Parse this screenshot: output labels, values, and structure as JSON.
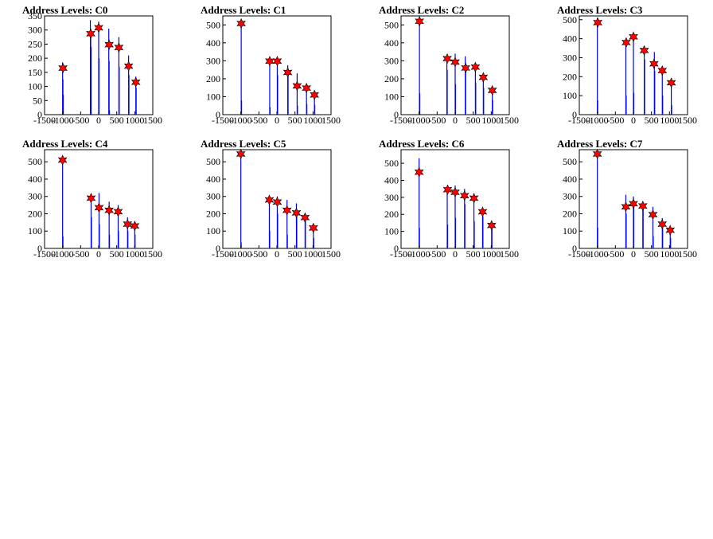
{
  "page": {
    "background": "#ffffff"
  },
  "style": {
    "bar_color": "#0000ff",
    "marker_color": "#ff0000",
    "axis_color": "#000000"
  },
  "chart_data": [
    {
      "type": "bar",
      "title": "Address Levels: C0",
      "xlim": [
        -1500,
        1500
      ],
      "ylim": [
        0,
        350
      ],
      "xticks": [
        -1500,
        -1000,
        -500,
        0,
        500,
        1000,
        1500
      ],
      "xtick_labels": [
        "-1500",
        "-1000",
        "-500",
        "0",
        "500",
        "1000",
        "1500"
      ],
      "yticks": [
        0,
        50,
        100,
        150,
        200,
        250,
        300,
        350
      ],
      "ytick_labels": [
        "0",
        "50",
        "100",
        "150",
        "200",
        "250",
        "300",
        "350"
      ],
      "bars": [
        {
          "x": -1000,
          "y": 185
        },
        {
          "x": -990,
          "y": 125
        },
        {
          "x": -980,
          "y": 70
        },
        {
          "x": -230,
          "y": 335
        },
        {
          "x": -220,
          "y": 300
        },
        {
          "x": -210,
          "y": 240
        },
        {
          "x": 0,
          "y": 330
        },
        {
          "x": 10,
          "y": 200
        },
        {
          "x": 280,
          "y": 305
        },
        {
          "x": 290,
          "y": 190
        },
        {
          "x": 300,
          "y": 15
        },
        {
          "x": 560,
          "y": 275
        },
        {
          "x": 570,
          "y": 170
        },
        {
          "x": 830,
          "y": 210
        },
        {
          "x": 840,
          "y": 140
        },
        {
          "x": 1030,
          "y": 135
        },
        {
          "x": 1040,
          "y": 95
        }
      ],
      "markers": [
        {
          "x": -990,
          "y": 165
        },
        {
          "x": -220,
          "y": 287
        },
        {
          "x": 0,
          "y": 308
        },
        {
          "x": 290,
          "y": 248
        },
        {
          "x": 560,
          "y": 238
        },
        {
          "x": 830,
          "y": 172
        },
        {
          "x": 1030,
          "y": 115
        }
      ]
    },
    {
      "type": "bar",
      "title": "Address Levels: C1",
      "xlim": [
        -1500,
        1500
      ],
      "ylim": [
        0,
        550
      ],
      "xticks": [
        -1500,
        -1000,
        -500,
        0,
        500,
        1000,
        1500
      ],
      "xtick_labels": [
        "-1500",
        "-1000",
        "-500",
        "0",
        "500",
        "1000",
        "1500"
      ],
      "yticks": [
        0,
        100,
        200,
        300,
        400,
        500
      ],
      "ytick_labels": [
        "0",
        "100",
        "200",
        "300",
        "400",
        "500"
      ],
      "bars": [
        {
          "x": -990,
          "y": 515
        },
        {
          "x": -980,
          "y": 80
        },
        {
          "x": -200,
          "y": 290
        },
        {
          "x": -190,
          "y": 40
        },
        {
          "x": 10,
          "y": 310
        },
        {
          "x": 20,
          "y": 220
        },
        {
          "x": 300,
          "y": 275
        },
        {
          "x": 310,
          "y": 240
        },
        {
          "x": 560,
          "y": 230
        },
        {
          "x": 570,
          "y": 50
        },
        {
          "x": 820,
          "y": 150
        },
        {
          "x": 830,
          "y": 60
        },
        {
          "x": 1040,
          "y": 115
        },
        {
          "x": 1050,
          "y": 55
        }
      ],
      "markers": [
        {
          "x": -990,
          "y": 508
        },
        {
          "x": -200,
          "y": 298
        },
        {
          "x": 10,
          "y": 298
        },
        {
          "x": 300,
          "y": 235
        },
        {
          "x": 560,
          "y": 160
        },
        {
          "x": 820,
          "y": 148
        },
        {
          "x": 1040,
          "y": 110
        }
      ]
    },
    {
      "type": "bar",
      "title": "Address Levels: C2",
      "xlim": [
        -1500,
        1500
      ],
      "ylim": [
        0,
        550
      ],
      "xticks": [
        -1500,
        -1000,
        -500,
        0,
        500,
        1000,
        1500
      ],
      "xtick_labels": [
        "-1500",
        "-1000",
        "-500",
        "0",
        "500",
        "1000",
        "1500"
      ],
      "yticks": [
        0,
        100,
        200,
        300,
        400,
        500
      ],
      "ytick_labels": [
        "0",
        "100",
        "200",
        "300",
        "400",
        "500"
      ],
      "bars": [
        {
          "x": -990,
          "y": 540
        },
        {
          "x": -980,
          "y": 120
        },
        {
          "x": -230,
          "y": 330
        },
        {
          "x": -220,
          "y": 250
        },
        {
          "x": 0,
          "y": 340
        },
        {
          "x": 10,
          "y": 170
        },
        {
          "x": 280,
          "y": 325
        },
        {
          "x": 290,
          "y": 260
        },
        {
          "x": 560,
          "y": 275
        },
        {
          "x": 570,
          "y": 180
        },
        {
          "x": 780,
          "y": 215
        },
        {
          "x": 790,
          "y": 150
        },
        {
          "x": 1030,
          "y": 150
        },
        {
          "x": 1040,
          "y": 80
        }
      ],
      "markers": [
        {
          "x": -990,
          "y": 520
        },
        {
          "x": -220,
          "y": 312
        },
        {
          "x": 0,
          "y": 293
        },
        {
          "x": 290,
          "y": 260
        },
        {
          "x": 560,
          "y": 265
        },
        {
          "x": 780,
          "y": 208
        },
        {
          "x": 1030,
          "y": 135
        }
      ]
    },
    {
      "type": "bar",
      "title": "Address Levels: C3",
      "xlim": [
        -1500,
        1500
      ],
      "ylim": [
        0,
        520
      ],
      "xticks": [
        -1500,
        -1000,
        -500,
        0,
        500,
        1000,
        1500
      ],
      "xtick_labels": [
        "-1500",
        "-1000",
        "-500",
        "0",
        "500",
        "1000",
        "1500"
      ],
      "yticks": [
        0,
        100,
        200,
        300,
        400,
        500
      ],
      "ytick_labels": [
        "0",
        "100",
        "200",
        "300",
        "400",
        "500"
      ],
      "bars": [
        {
          "x": -1000,
          "y": 510
        },
        {
          "x": -990,
          "y": 75
        },
        {
          "x": -210,
          "y": 390
        },
        {
          "x": -200,
          "y": 100
        },
        {
          "x": 0,
          "y": 400
        },
        {
          "x": 10,
          "y": 115
        },
        {
          "x": 300,
          "y": 350
        },
        {
          "x": 310,
          "y": 290
        },
        {
          "x": 580,
          "y": 330
        },
        {
          "x": 590,
          "y": 230
        },
        {
          "x": 800,
          "y": 245
        },
        {
          "x": 810,
          "y": 100
        },
        {
          "x": 1050,
          "y": 180
        },
        {
          "x": 1060,
          "y": 50
        }
      ],
      "markers": [
        {
          "x": -990,
          "y": 485
        },
        {
          "x": -200,
          "y": 380
        },
        {
          "x": 0,
          "y": 410
        },
        {
          "x": 300,
          "y": 338
        },
        {
          "x": 570,
          "y": 268
        },
        {
          "x": 800,
          "y": 232
        },
        {
          "x": 1050,
          "y": 168
        }
      ]
    },
    {
      "type": "bar",
      "title": "Address Levels: C4",
      "xlim": [
        -1500,
        1500
      ],
      "ylim": [
        0,
        570
      ],
      "xticks": [
        -1500,
        -1000,
        -500,
        0,
        500,
        1000,
        1500
      ],
      "xtick_labels": [
        "-1500",
        "-1000",
        "-500",
        "0",
        "500",
        "1000",
        "1500"
      ],
      "yticks": [
        0,
        100,
        200,
        300,
        400,
        500
      ],
      "ytick_labels": [
        "0",
        "100",
        "200",
        "300",
        "400",
        "500"
      ],
      "bars": [
        {
          "x": -1000,
          "y": 530
        },
        {
          "x": -990,
          "y": 70
        },
        {
          "x": -210,
          "y": 300
        },
        {
          "x": -200,
          "y": 180
        },
        {
          "x": 10,
          "y": 320
        },
        {
          "x": 20,
          "y": 140
        },
        {
          "x": 290,
          "y": 270
        },
        {
          "x": 300,
          "y": 80
        },
        {
          "x": 540,
          "y": 250
        },
        {
          "x": 550,
          "y": 100
        },
        {
          "x": 800,
          "y": 180
        },
        {
          "x": 810,
          "y": 100
        },
        {
          "x": 1000,
          "y": 140
        },
        {
          "x": 1010,
          "y": 80
        }
      ],
      "markers": [
        {
          "x": -1000,
          "y": 510
        },
        {
          "x": -210,
          "y": 290
        },
        {
          "x": 10,
          "y": 235
        },
        {
          "x": 290,
          "y": 220
        },
        {
          "x": 540,
          "y": 212
        },
        {
          "x": 800,
          "y": 140
        },
        {
          "x": 1000,
          "y": 130
        }
      ]
    },
    {
      "type": "bar",
      "title": "Address Levels: C5",
      "xlim": [
        -1500,
        1500
      ],
      "ylim": [
        0,
        570
      ],
      "xticks": [
        -1500,
        -1000,
        -500,
        0,
        500,
        1000,
        1500
      ],
      "xtick_labels": [
        "-1500",
        "-1000",
        "-500",
        "0",
        "500",
        "1000",
        "1500"
      ],
      "yticks": [
        0,
        100,
        200,
        300,
        400,
        500
      ],
      "ytick_labels": [
        "0",
        "100",
        "200",
        "300",
        "400",
        "500"
      ],
      "bars": [
        {
          "x": -1000,
          "y": 560
        },
        {
          "x": -990,
          "y": 35
        },
        {
          "x": -210,
          "y": 300
        },
        {
          "x": -200,
          "y": 100
        },
        {
          "x": 10,
          "y": 300
        },
        {
          "x": 20,
          "y": 200
        },
        {
          "x": 280,
          "y": 280
        },
        {
          "x": 290,
          "y": 80
        },
        {
          "x": 540,
          "y": 260
        },
        {
          "x": 550,
          "y": 220
        },
        {
          "x": 780,
          "y": 190
        },
        {
          "x": 790,
          "y": 160
        },
        {
          "x": 1010,
          "y": 130
        },
        {
          "x": 1020,
          "y": 60
        }
      ],
      "markers": [
        {
          "x": -1000,
          "y": 545
        },
        {
          "x": -210,
          "y": 280
        },
        {
          "x": 10,
          "y": 268
        },
        {
          "x": 280,
          "y": 220
        },
        {
          "x": 540,
          "y": 205
        },
        {
          "x": 780,
          "y": 178
        },
        {
          "x": 1010,
          "y": 118
        }
      ]
    },
    {
      "type": "bar",
      "title": "Address Levels: C6",
      "xlim": [
        -1500,
        1500
      ],
      "ylim": [
        0,
        580
      ],
      "xticks": [
        -1500,
        -1000,
        -500,
        0,
        500,
        1000,
        1500
      ],
      "xtick_labels": [
        "-1500",
        "-1000",
        "-500",
        "0",
        "500",
        "1000",
        "1500"
      ],
      "yticks": [
        0,
        100,
        200,
        300,
        400,
        500
      ],
      "ytick_labels": [
        "0",
        "100",
        "200",
        "300",
        "400",
        "500"
      ],
      "bars": [
        {
          "x": -1000,
          "y": 530
        },
        {
          "x": -990,
          "y": 120
        },
        {
          "x": -220,
          "y": 360
        },
        {
          "x": -210,
          "y": 140
        },
        {
          "x": 0,
          "y": 370
        },
        {
          "x": 10,
          "y": 180
        },
        {
          "x": 260,
          "y": 350
        },
        {
          "x": 270,
          "y": 260
        },
        {
          "x": 520,
          "y": 300
        },
        {
          "x": 530,
          "y": 160
        },
        {
          "x": 760,
          "y": 225
        },
        {
          "x": 770,
          "y": 190
        },
        {
          "x": 1010,
          "y": 160
        },
        {
          "x": 1020,
          "y": 140
        }
      ],
      "markers": [
        {
          "x": -1000,
          "y": 448
        },
        {
          "x": -210,
          "y": 345
        },
        {
          "x": 0,
          "y": 330
        },
        {
          "x": 260,
          "y": 310
        },
        {
          "x": 520,
          "y": 295
        },
        {
          "x": 760,
          "y": 215
        },
        {
          "x": 1010,
          "y": 135
        }
      ]
    },
    {
      "type": "bar",
      "title": "Address Levels: C7",
      "xlim": [
        -1500,
        1500
      ],
      "ylim": [
        0,
        570
      ],
      "xticks": [
        -1500,
        -1000,
        -500,
        0,
        500,
        1000,
        1500
      ],
      "xtick_labels": [
        "-1500",
        "-1000",
        "-500",
        "0",
        "500",
        "1000",
        "1500"
      ],
      "yticks": [
        0,
        100,
        200,
        300,
        400,
        500
      ],
      "ytick_labels": [
        "0",
        "100",
        "200",
        "300",
        "400",
        "500"
      ],
      "bars": [
        {
          "x": -1000,
          "y": 565
        },
        {
          "x": -990,
          "y": 120
        },
        {
          "x": -210,
          "y": 310
        },
        {
          "x": -200,
          "y": 200
        },
        {
          "x": 0,
          "y": 300
        },
        {
          "x": 10,
          "y": 280
        },
        {
          "x": 260,
          "y": 270
        },
        {
          "x": 270,
          "y": 230
        },
        {
          "x": 540,
          "y": 240
        },
        {
          "x": 550,
          "y": 70
        },
        {
          "x": 800,
          "y": 175
        },
        {
          "x": 810,
          "y": 130
        },
        {
          "x": 1020,
          "y": 120
        },
        {
          "x": 1030,
          "y": 60
        }
      ],
      "markers": [
        {
          "x": -1000,
          "y": 545
        },
        {
          "x": -210,
          "y": 240
        },
        {
          "x": 0,
          "y": 258
        },
        {
          "x": 260,
          "y": 245
        },
        {
          "x": 540,
          "y": 195
        },
        {
          "x": 800,
          "y": 140
        },
        {
          "x": 1020,
          "y": 105
        }
      ]
    }
  ]
}
